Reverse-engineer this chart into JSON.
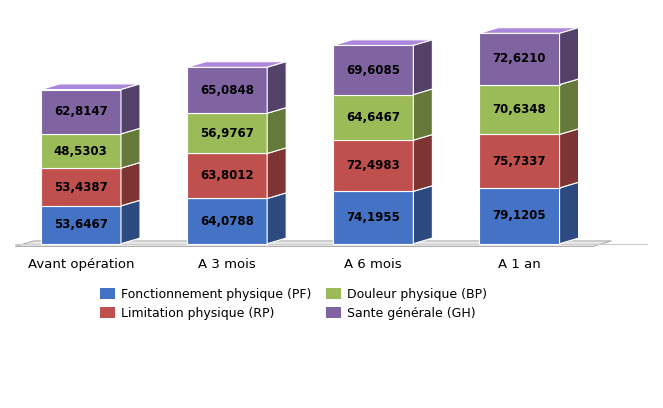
{
  "categories": [
    "Avant opération",
    "A 3 mois",
    "A 6 mois",
    "A 1 an"
  ],
  "series": {
    "Fonctionnement physique (PF)": [
      53.6467,
      64.0788,
      74.1955,
      79.1205
    ],
    "Limitation physique (RP)": [
      53.4387,
      63.8012,
      72.4983,
      75.7337
    ],
    "Douleur physique (BP)": [
      48.5303,
      56.9767,
      64.6467,
      70.6348
    ],
    "Sante générale (GH)": [
      62.8147,
      65.0848,
      69.6085,
      72.621
    ]
  },
  "colors": {
    "Fonctionnement physique (PF)": "#4472C4",
    "Limitation physique (RP)": "#C0504D",
    "Douleur physique (BP)": "#9BBB59",
    "Sante générale (GH)": "#8064A2"
  },
  "background_color": "#FFFFFF",
  "label_fontsize": 8.5,
  "legend_fontsize": 9,
  "tick_fontsize": 9.5
}
